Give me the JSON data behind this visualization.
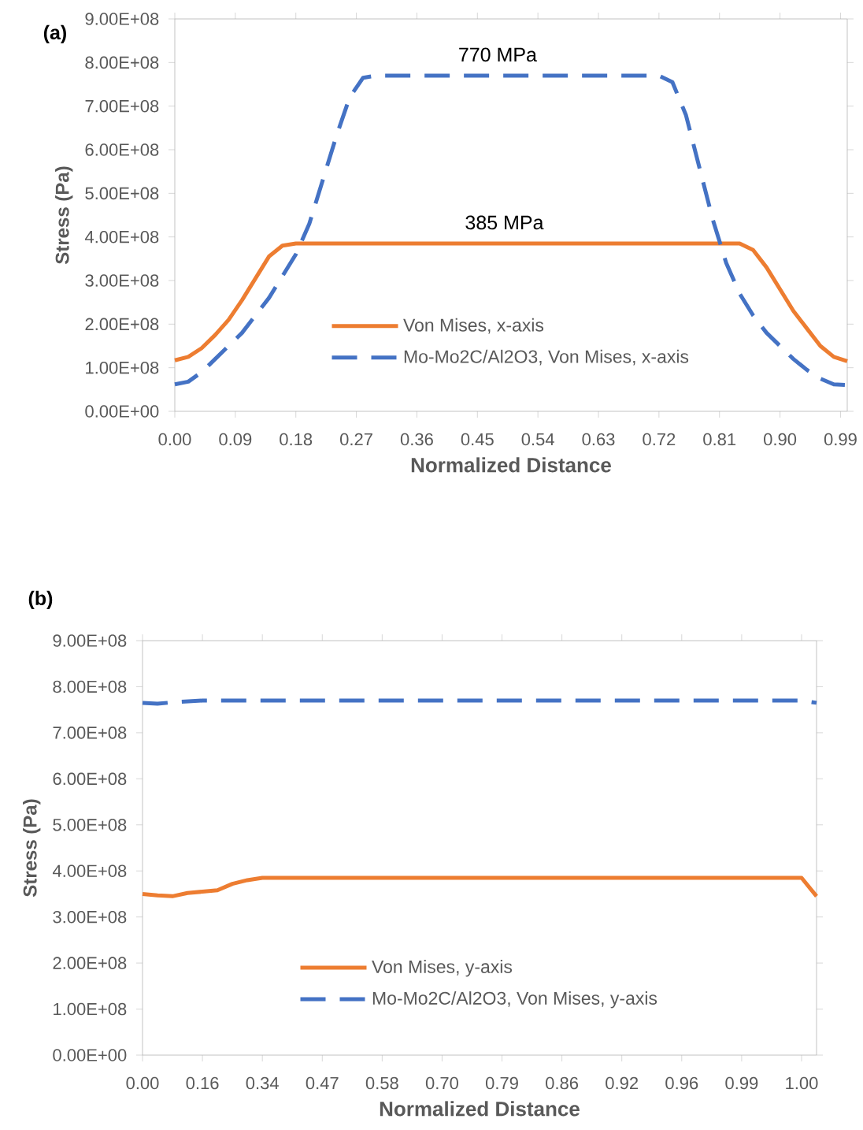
{
  "chart_data": [
    {
      "type": "line",
      "title": "(a)",
      "xlabel": "Normalized Distance",
      "ylabel": "Stress (Pa)",
      "x": [
        0,
        0.02,
        0.04,
        0.06,
        0.08,
        0.1,
        0.12,
        0.14,
        0.16,
        0.18,
        0.2,
        0.22,
        0.24,
        0.26,
        0.28,
        0.3,
        0.4,
        0.5,
        0.6,
        0.7,
        0.72,
        0.74,
        0.76,
        0.78,
        0.8,
        0.82,
        0.84,
        0.86,
        0.88,
        0.9,
        0.92,
        0.94,
        0.96,
        0.98,
        1.0
      ],
      "series": [
        {
          "name": "Von Mises, x-axis",
          "color": "#ed7d31",
          "line_style": "solid",
          "values": [
            117000000,
            125000000,
            145000000,
            175000000,
            210000000,
            255000000,
            305000000,
            355000000,
            380000000,
            385000000,
            385000000,
            385000000,
            385000000,
            385000000,
            385000000,
            385000000,
            385000000,
            385000000,
            385000000,
            385000000,
            385000000,
            385000000,
            385000000,
            385000000,
            385000000,
            385000000,
            385000000,
            370000000,
            330000000,
            280000000,
            230000000,
            190000000,
            150000000,
            125000000,
            115000000
          ]
        },
        {
          "name": "Mo-Mo2C/Al2O3, Von Mises, x-axis",
          "color": "#4472c4",
          "line_style": "dashed",
          "values": [
            62000000,
            68000000,
            90000000,
            120000000,
            150000000,
            180000000,
            220000000,
            260000000,
            310000000,
            360000000,
            430000000,
            530000000,
            630000000,
            720000000,
            765000000,
            770000000,
            770000000,
            770000000,
            770000000,
            770000000,
            770000000,
            755000000,
            680000000,
            560000000,
            440000000,
            340000000,
            270000000,
            220000000,
            180000000,
            150000000,
            120000000,
            95000000,
            75000000,
            62000000,
            60000000
          ]
        }
      ],
      "xlim": [
        0,
        1.0
      ],
      "xticks": [
        {
          "value": 0,
          "label": "0.00"
        },
        {
          "value": 0.09,
          "label": "0.09"
        },
        {
          "value": 0.18,
          "label": "0.18"
        },
        {
          "value": 0.27,
          "label": "0.27"
        },
        {
          "value": 0.36,
          "label": "0.36"
        },
        {
          "value": 0.45,
          "label": "0.45"
        },
        {
          "value": 0.54,
          "label": "0.54"
        },
        {
          "value": 0.63,
          "label": "0.63"
        },
        {
          "value": 0.72,
          "label": "0.72"
        },
        {
          "value": 0.81,
          "label": "0.81"
        },
        {
          "value": 0.9,
          "label": "0.90"
        },
        {
          "value": 0.99,
          "label": "0.99"
        }
      ],
      "ylim": [
        0,
        900000000
      ],
      "yticks": [
        {
          "value": 0,
          "label": "0.00E+00"
        },
        {
          "value": 100000000,
          "label": "1.00E+08"
        },
        {
          "value": 200000000,
          "label": "2.00E+08"
        },
        {
          "value": 300000000,
          "label": "3.00E+08"
        },
        {
          "value": 400000000,
          "label": "4.00E+08"
        },
        {
          "value": 500000000,
          "label": "5.00E+08"
        },
        {
          "value": 600000000,
          "label": "6.00E+08"
        },
        {
          "value": 700000000,
          "label": "7.00E+08"
        },
        {
          "value": 800000000,
          "label": "8.00E+08"
        },
        {
          "value": 900000000,
          "label": "9.00E+08"
        }
      ],
      "annotations": [
        {
          "text": "770 MPa",
          "x": 0.48,
          "y": 770000000
        },
        {
          "text": "385 MPa",
          "x": 0.49,
          "y": 385000000
        }
      ],
      "legend": "bottom",
      "grid": false
    },
    {
      "type": "line",
      "title": "(b)",
      "xlabel": "Normalized Distance",
      "ylabel": "Stress (Pa)",
      "categories": [
        "0.00",
        null,
        null,
        null,
        "0.16",
        null,
        null,
        null,
        "0.34",
        null,
        null,
        null,
        "0.47",
        null,
        null,
        null,
        "0.58",
        null,
        null,
        null,
        "0.70",
        null,
        null,
        null,
        "0.79",
        null,
        null,
        null,
        "0.86",
        null,
        null,
        null,
        "0.92",
        null,
        null,
        null,
        "0.96",
        null,
        null,
        null,
        "0.99",
        null,
        null,
        null,
        "1.00",
        null
      ],
      "series": [
        {
          "name": "Von Mises, y-axis",
          "color": "#ed7d31",
          "line_style": "solid",
          "values": [
            350000000,
            347000000,
            345000000,
            352000000,
            355000000,
            358000000,
            372000000,
            380000000,
            385000000,
            385000000,
            385000000,
            385000000,
            385000000,
            385000000,
            385000000,
            385000000,
            385000000,
            385000000,
            385000000,
            385000000,
            385000000,
            385000000,
            385000000,
            385000000,
            385000000,
            385000000,
            385000000,
            385000000,
            385000000,
            385000000,
            385000000,
            385000000,
            385000000,
            385000000,
            385000000,
            385000000,
            385000000,
            385000000,
            385000000,
            385000000,
            385000000,
            385000000,
            385000000,
            385000000,
            385000000,
            345000000
          ]
        },
        {
          "name": "Mo-Mo2C/Al2O3, Von Mises, y-axis",
          "color": "#4472c4",
          "line_style": "dashed",
          "values": [
            765000000,
            763000000,
            766000000,
            768000000,
            770000000,
            770000000,
            770000000,
            770000000,
            770000000,
            770000000,
            770000000,
            770000000,
            770000000,
            770000000,
            770000000,
            770000000,
            770000000,
            770000000,
            770000000,
            770000000,
            770000000,
            770000000,
            770000000,
            770000000,
            770000000,
            770000000,
            770000000,
            770000000,
            770000000,
            770000000,
            770000000,
            770000000,
            770000000,
            770000000,
            770000000,
            770000000,
            770000000,
            770000000,
            770000000,
            770000000,
            770000000,
            770000000,
            770000000,
            770000000,
            770000000,
            765000000
          ]
        }
      ],
      "ylim": [
        0,
        900000000
      ],
      "yticks": [
        {
          "value": 0,
          "label": "0.00E+00"
        },
        {
          "value": 100000000,
          "label": "1.00E+08"
        },
        {
          "value": 200000000,
          "label": "2.00E+08"
        },
        {
          "value": 300000000,
          "label": "3.00E+08"
        },
        {
          "value": 400000000,
          "label": "4.00E+08"
        },
        {
          "value": 500000000,
          "label": "5.00E+08"
        },
        {
          "value": 600000000,
          "label": "6.00E+08"
        },
        {
          "value": 700000000,
          "label": "7.00E+08"
        },
        {
          "value": 800000000,
          "label": "8.00E+08"
        },
        {
          "value": 900000000,
          "label": "9.00E+08"
        }
      ],
      "legend": "bottom",
      "grid": false
    }
  ]
}
